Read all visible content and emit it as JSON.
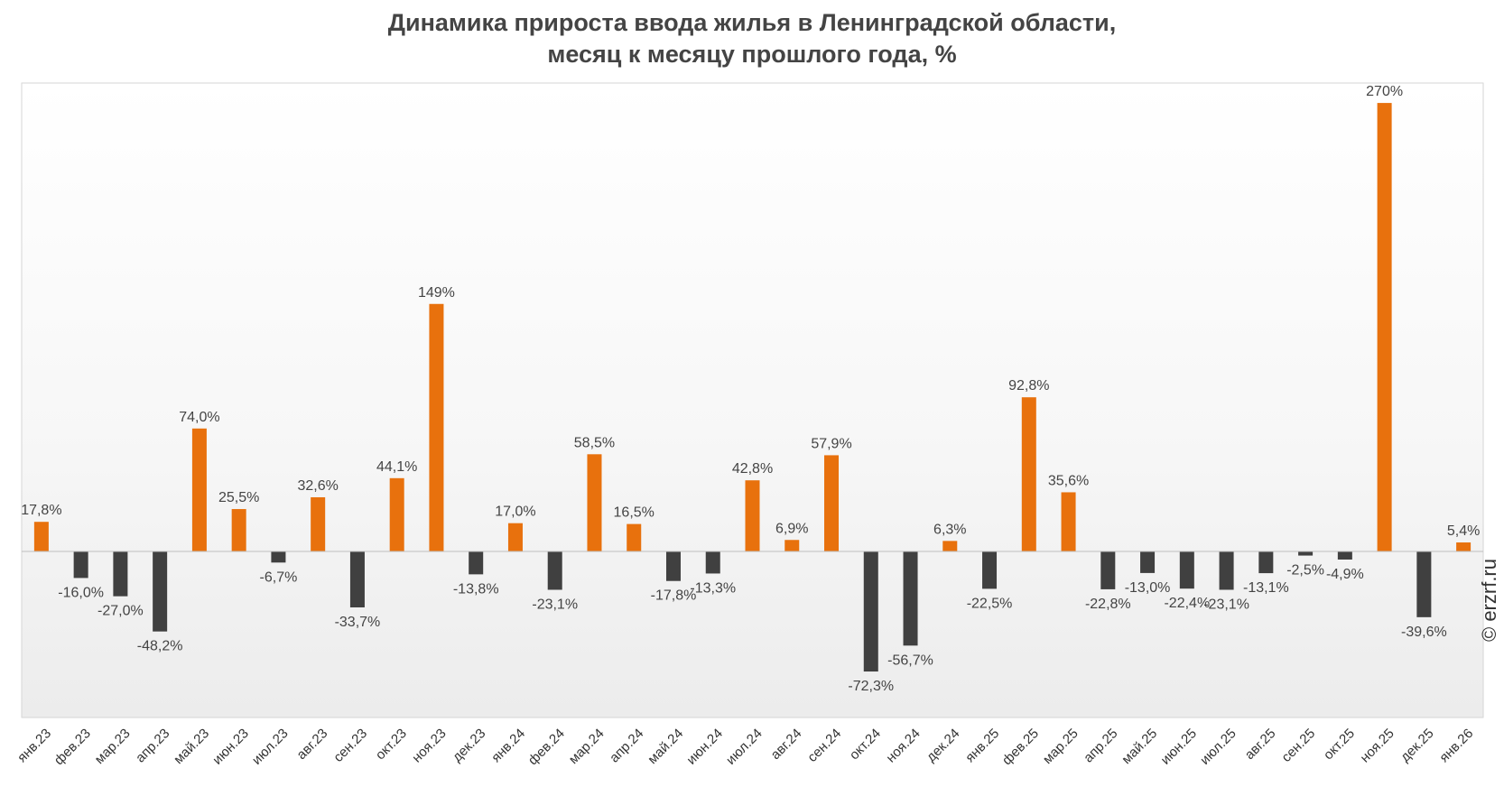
{
  "chart_data": {
    "type": "bar",
    "title": [
      "Динамика прироста ввода жилья в Ленинградской области,",
      "месяц к месяцу прошлого года, %"
    ],
    "categories": [
      "янв.23",
      "фев.23",
      "мар.23",
      "апр.23",
      "май.23",
      "июн.23",
      "июл.23",
      "авг.23",
      "сен.23",
      "окт.23",
      "ноя.23",
      "дек.23",
      "янв.24",
      "фев.24",
      "мар.24",
      "апр.24",
      "май.24",
      "июн.24",
      "июл.24",
      "авг.24",
      "сен.24",
      "окт.24",
      "ноя.24",
      "дек.24",
      "янв.25",
      "фев.25",
      "мар.25",
      "апр.25",
      "май.25",
      "июн.25",
      "июл.25",
      "авг.25",
      "сен.25",
      "окт.25",
      "ноя.25",
      "дек.25",
      "янв.26"
    ],
    "values": [
      17.8,
      -16.0,
      -27.0,
      -48.2,
      74.0,
      25.5,
      -6.7,
      32.6,
      -33.7,
      44.1,
      149,
      -13.8,
      17.0,
      -23.1,
      58.5,
      16.5,
      -17.8,
      -13.3,
      42.8,
      6.9,
      57.9,
      -72.3,
      -56.7,
      6.3,
      -22.5,
      92.8,
      35.6,
      -22.8,
      -13.0,
      -22.4,
      -23.1,
      -13.1,
      -2.5,
      -4.9,
      270,
      -39.6,
      5.4
    ],
    "labels": [
      "17,8%",
      "-16,0%",
      "-27,0%",
      "-48,2%",
      "74,0%",
      "25,5%",
      "-6,7%",
      "32,6%",
      "-33,7%",
      "44,1%",
      "149%",
      "-13,8%",
      "17,0%",
      "-23,1%",
      "58,5%",
      "16,5%",
      "-17,8%",
      "-13,3%",
      "42,8%",
      "6,9%",
      "57,9%",
      "-72,3%",
      "-56,7%",
      "6,3%",
      "-22,5%",
      "92,8%",
      "35,6%",
      "-22,8%",
      "-13,0%",
      "-22,4%",
      "-23,1%",
      "-13,1%",
      "-2,5%",
      "-4,9%",
      "270%",
      "-39,6%",
      "5,4%"
    ],
    "ylim": [
      -100,
      282
    ],
    "grid": false,
    "colors": {
      "positive": "#e8710d",
      "negative": "#404040",
      "label": "#444444"
    }
  },
  "watermark": "© erzrf.ru"
}
